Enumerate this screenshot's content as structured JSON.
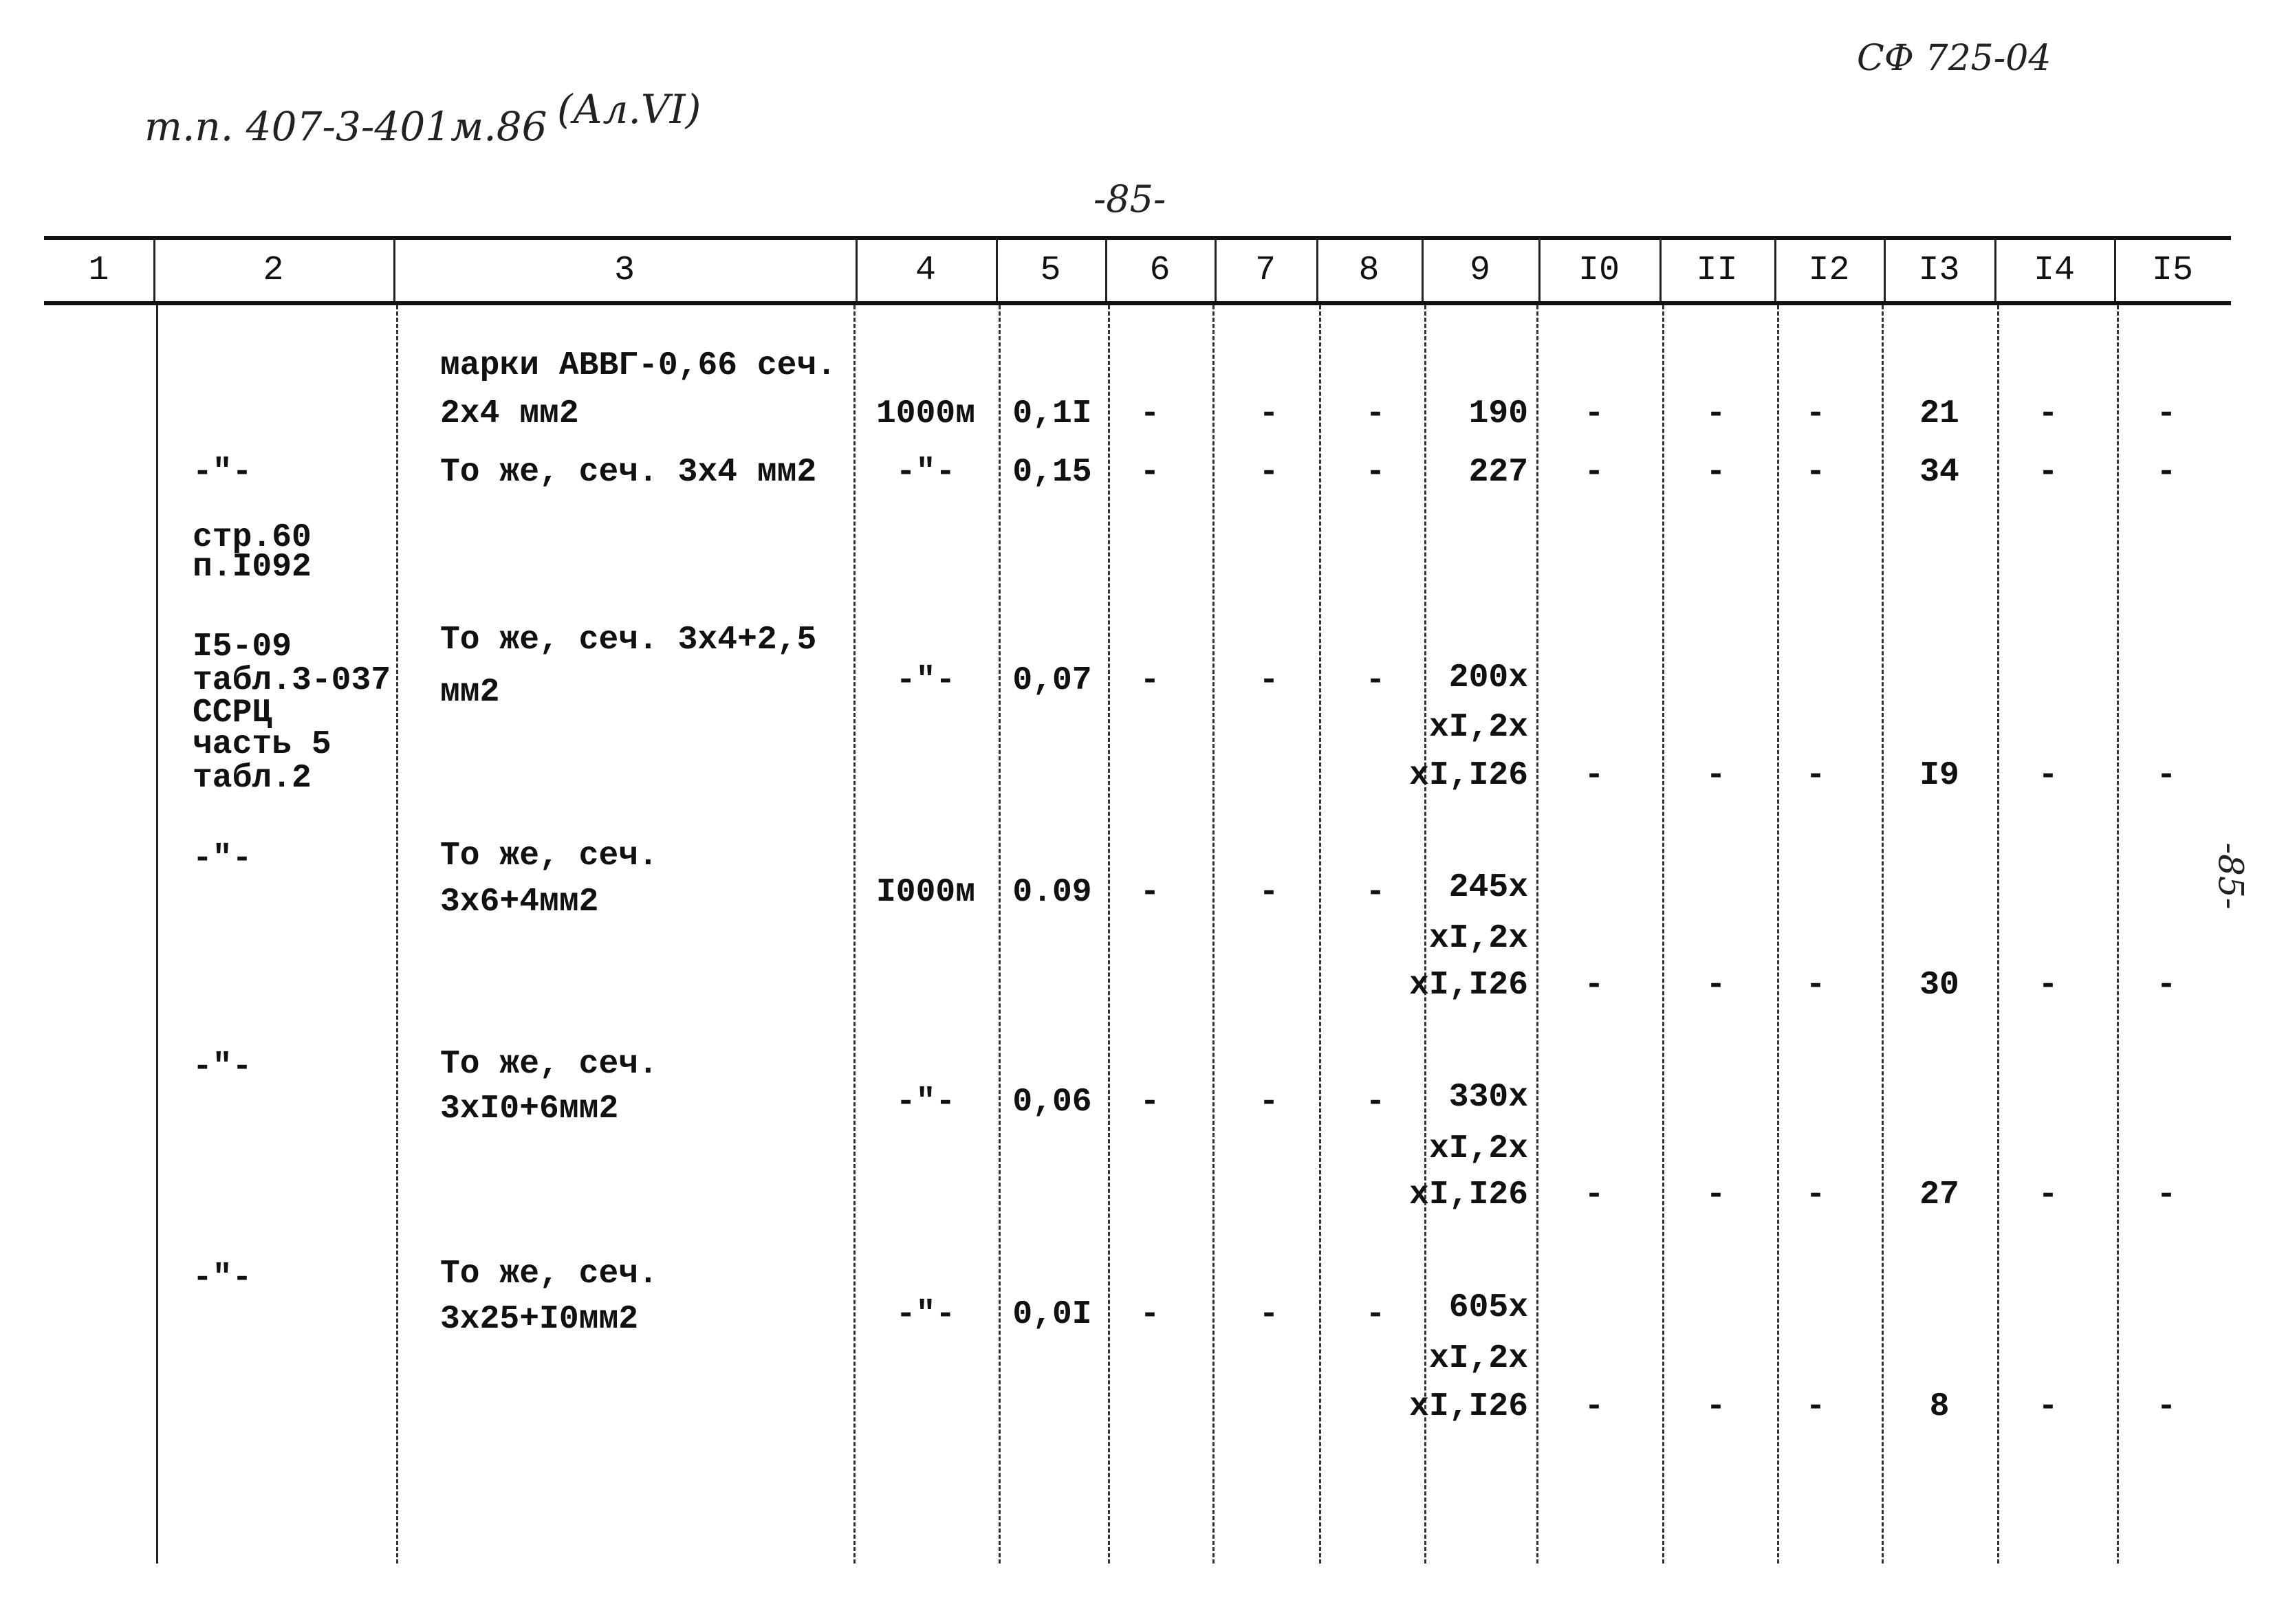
{
  "header": {
    "project_ref": "т.п. 407-3-401м.86",
    "album_ref": "(Ал.VI)",
    "doc_code": "СФ 725-04",
    "page_number": "-85-",
    "side_page_number": "-85-"
  },
  "columns": [
    "1",
    "2",
    "3",
    "4",
    "5",
    "6",
    "7",
    "8",
    "9",
    "I0",
    "II",
    "I2",
    "I3",
    "I4",
    "I5"
  ],
  "rows": [
    {
      "c2": [],
      "c3": [
        "марки АВВГ-0,66 сеч.",
        "2х4 мм2"
      ],
      "c4": "1000м",
      "c5": "0,1I",
      "c6": "-",
      "c7": "-",
      "c8": "-",
      "c9": [
        "190"
      ],
      "c10": "-",
      "c11": "-",
      "c12": "-",
      "c13": "21",
      "c14": "-",
      "c15": "-"
    },
    {
      "c2": [
        "-\"-"
      ],
      "c3": [
        "То же, сеч. 3х4 мм2"
      ],
      "c4": "-\"-",
      "c5": "0,15",
      "c6": "-",
      "c7": "-",
      "c8": "-",
      "c9": [
        "227"
      ],
      "c10": "-",
      "c11": "-",
      "c12": "-",
      "c13": "34",
      "c14": "-",
      "c15": "-"
    },
    {
      "c2": [
        "стр.60",
        "п.I092"
      ]
    },
    {
      "c2": [
        "I5-09",
        "табл.3-037",
        "ССРЦ",
        "часть 5",
        "табл.2"
      ],
      "c3": [
        "То же, сеч. 3х4+2,5",
        "мм2"
      ],
      "c4": "-\"-",
      "c5": "0,07",
      "c6": "-",
      "c7": "-",
      "c8": "-",
      "c9": [
        "200х",
        "хI,2х",
        "хI,I26"
      ],
      "c10": "-",
      "c11": "-",
      "c12": "-",
      "c13": "I9",
      "c14": "-",
      "c15": "-"
    },
    {
      "c2": [
        "-\"-"
      ],
      "c3": [
        "То же, сеч.",
        "3х6+4мм2"
      ],
      "c4": "I000м",
      "c5": "0.09",
      "c6": "-",
      "c7": "-",
      "c8": "-",
      "c9": [
        "245х",
        "хI,2х",
        "хI,I26"
      ],
      "c10": "-",
      "c11": "-",
      "c12": "-",
      "c13": "30",
      "c14": "-",
      "c15": "-"
    },
    {
      "c2": [
        "-\"-"
      ],
      "c3": [
        "То же, сеч.",
        "3хI0+6мм2"
      ],
      "c4": "-\"-",
      "c5": "0,06",
      "c6": "-",
      "c7": "-",
      "c8": "-",
      "c9": [
        "330х",
        "хI,2х",
        "хI,I26"
      ],
      "c10": "-",
      "c11": "-",
      "c12": "-",
      "c13": "27",
      "c14": "-",
      "c15": "-"
    },
    {
      "c2": [
        "-\"-"
      ],
      "c3": [
        "То же, сеч.",
        "3х25+I0мм2"
      ],
      "c4": "-\"-",
      "c5": "0,0I",
      "c6": "-",
      "c7": "-",
      "c8": "-",
      "c9": [
        "605х",
        "хI,2х",
        "хI,I26"
      ],
      "c10": "-",
      "c11": "-",
      "c12": "-",
      "c13": "8",
      "c14": "-",
      "c15": "-"
    }
  ]
}
